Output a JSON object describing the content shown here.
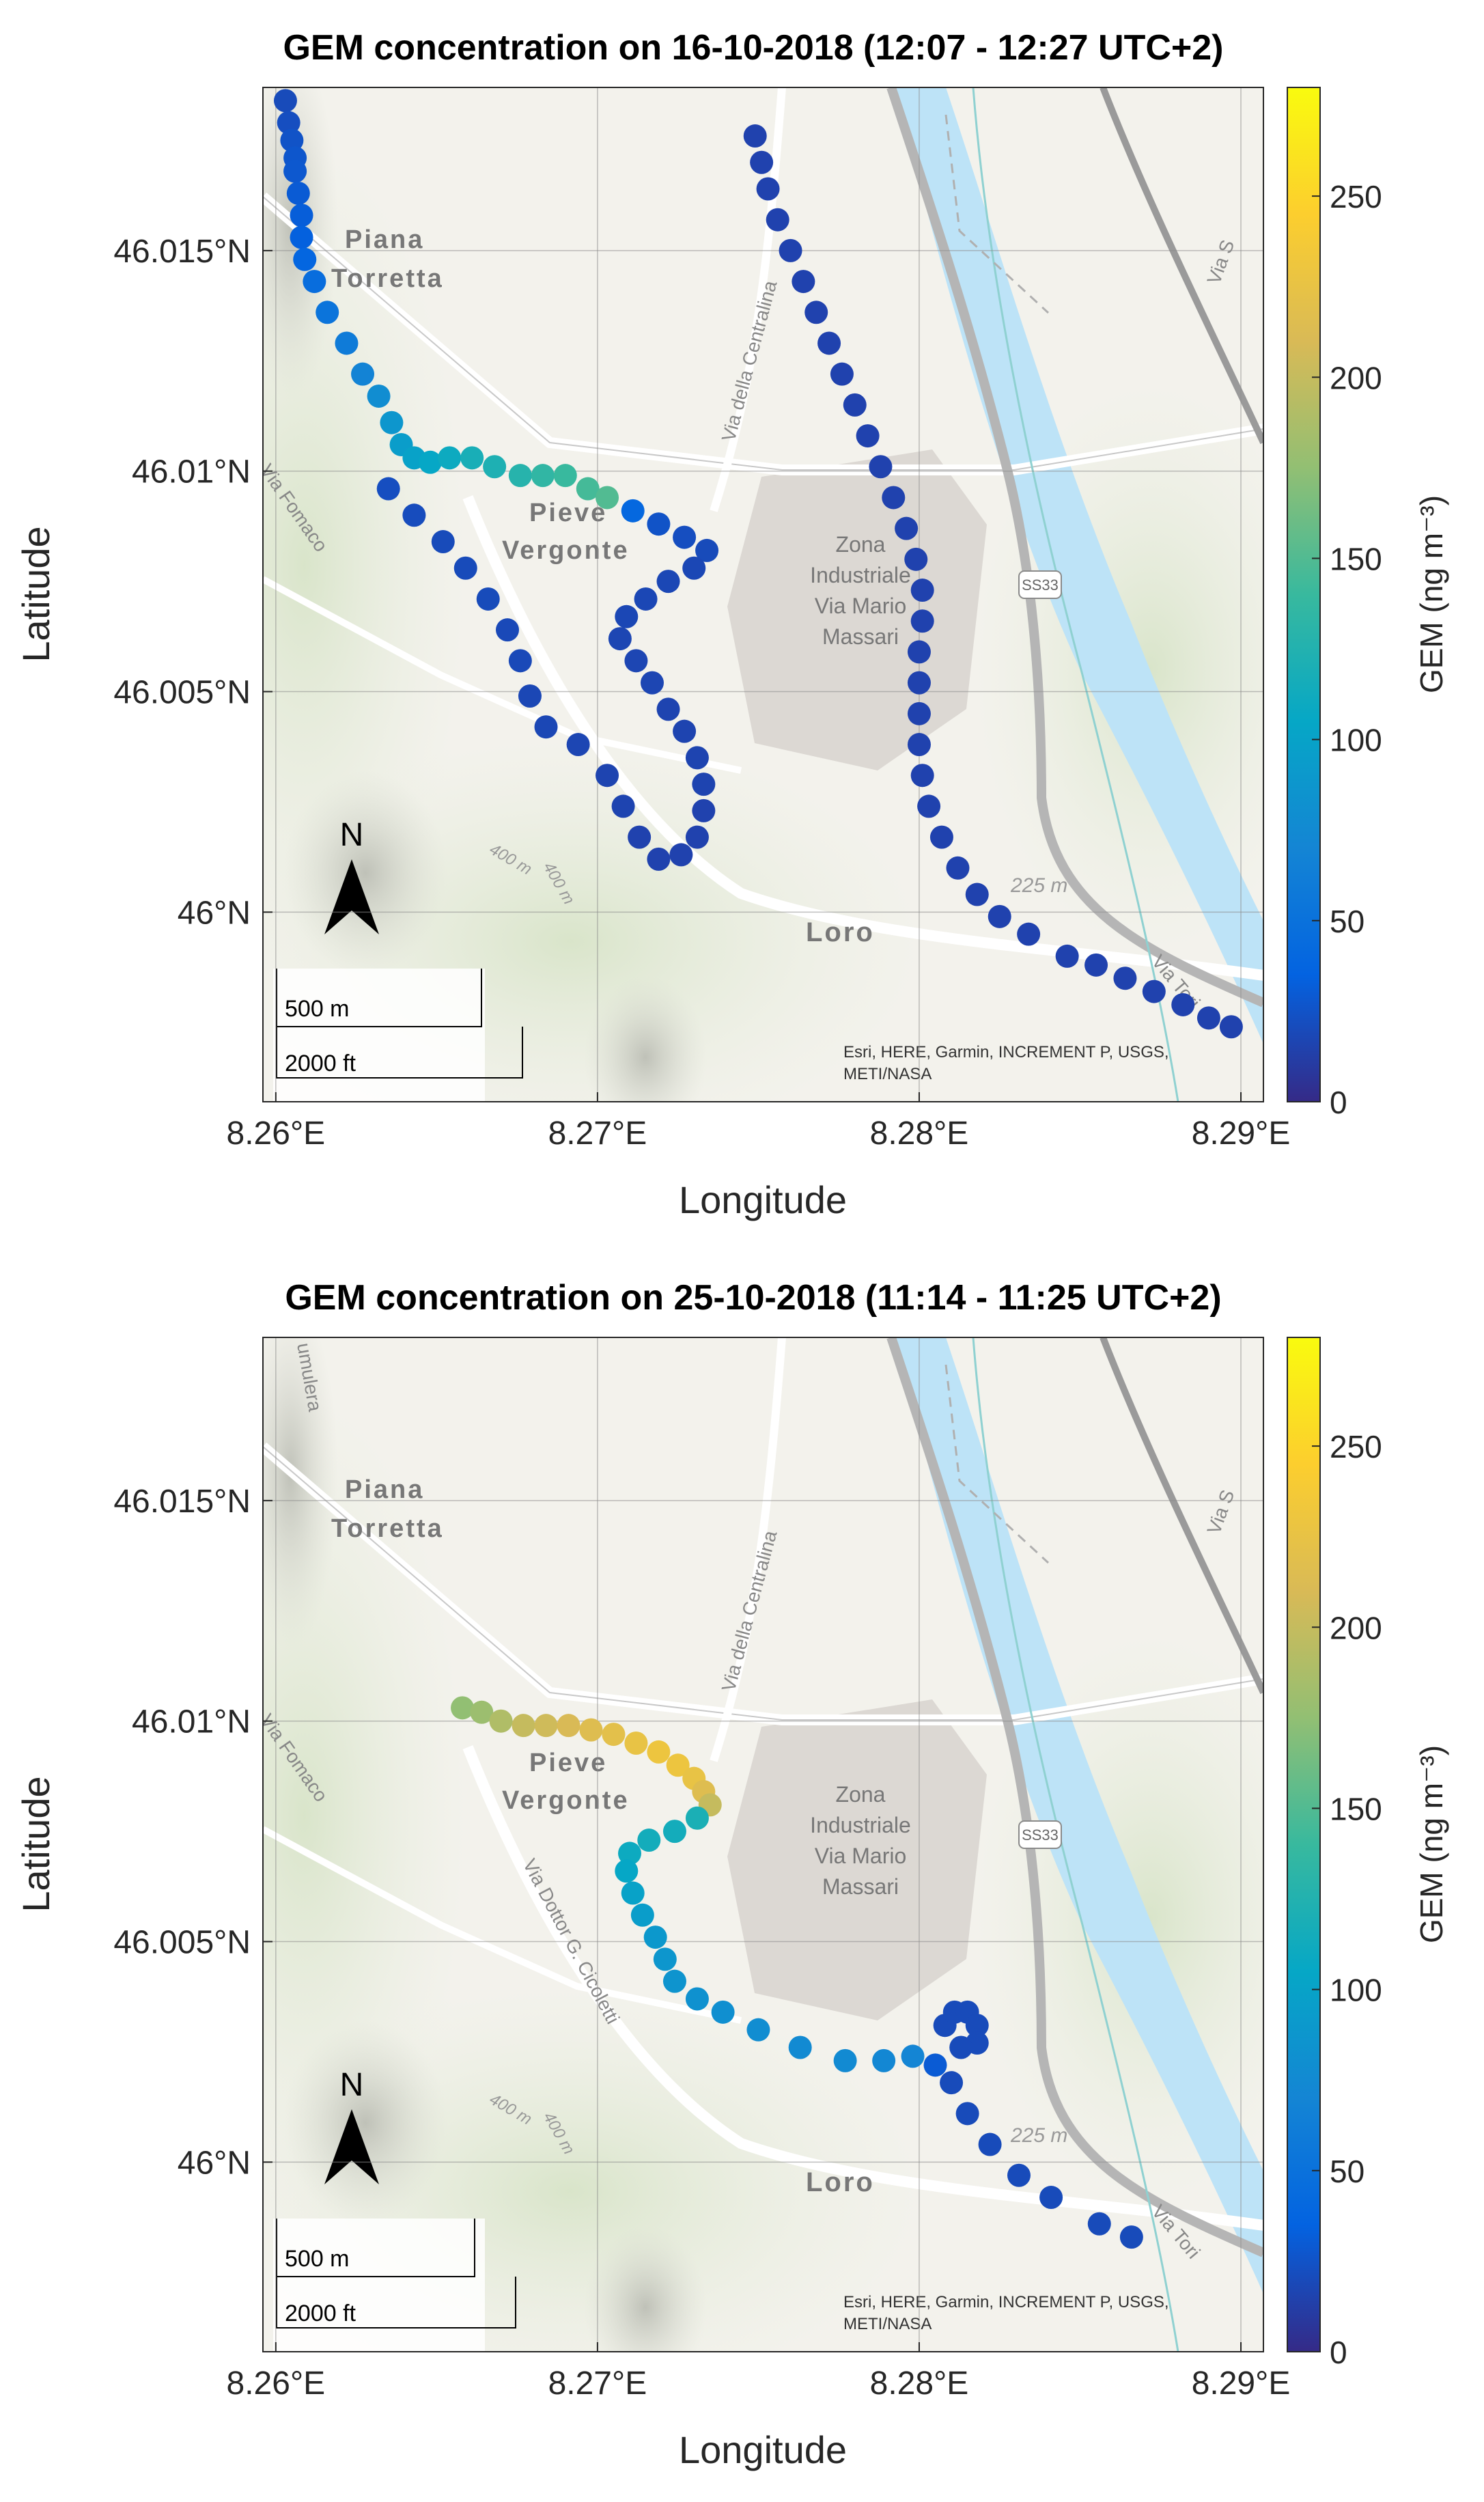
{
  "chart_data": [
    {
      "type": "scatter",
      "title": "GEM concentration on 16-10-2018 (12:07 - 12:27 UTC+2)",
      "xlabel": "Longitude",
      "ylabel": "Latitude",
      "xlim": [
        8.2596,
        8.2907
      ],
      "ylim": [
        45.9957,
        46.0187
      ],
      "x_ticks": [
        "8.26°E",
        "8.27°E",
        "8.28°E",
        "8.29°E"
      ],
      "y_ticks": [
        "46°N",
        "46.005°N",
        "46.01°N",
        "46.015°N"
      ],
      "colorbar": {
        "label": "GEM (ng m⁻³)",
        "range": [
          0,
          280
        ],
        "ticks": [
          "0",
          "50",
          "100",
          "150",
          "200",
          "250"
        ],
        "colormap": "parula"
      },
      "x_tick_values": [
        8.26,
        8.27,
        8.28,
        8.29
      ],
      "y_tick_values": [
        46.0,
        46.005,
        46.01,
        46.015
      ],
      "cbar_tick_values": [
        0,
        50,
        100,
        150,
        200,
        250
      ],
      "grid": true,
      "basemap": {
        "place_labels": [
          "Piana",
          "Torretta",
          "Pieve",
          "Vergonte",
          "Zona",
          "Industriale",
          "Via Mario",
          "Massari",
          "Loro"
        ],
        "road_labels": [
          "Via della Centralina",
          "Via Fomaco",
          "Via Tori",
          "Via S"
        ],
        "shield": "SS33",
        "elevation_labels": [
          "225 m",
          "400 m",
          "400 m"
        ],
        "scale_bar": [
          "500 m",
          "2000 ft"
        ],
        "north_arrow": "N",
        "attribution": [
          "Esri, HERE, Garmin, INCREMENT P, USGS,",
          "METI/NASA"
        ]
      },
      "points": [
        {
          "lon": 8.2603,
          "lat": 46.0184,
          "gem": 20
        },
        {
          "lon": 8.2604,
          "lat": 46.0179,
          "gem": 22
        },
        {
          "lon": 8.2605,
          "lat": 46.0175,
          "gem": 25
        },
        {
          "lon": 8.2606,
          "lat": 46.0171,
          "gem": 27
        },
        {
          "lon": 8.2606,
          "lat": 46.0168,
          "gem": 28
        },
        {
          "lon": 8.2607,
          "lat": 46.0163,
          "gem": 30
        },
        {
          "lon": 8.2608,
          "lat": 46.0158,
          "gem": 32
        },
        {
          "lon": 8.2608,
          "lat": 46.0153,
          "gem": 34
        },
        {
          "lon": 8.2609,
          "lat": 46.0148,
          "gem": 38
        },
        {
          "lon": 8.2612,
          "lat": 46.0143,
          "gem": 45
        },
        {
          "lon": 8.2616,
          "lat": 46.0136,
          "gem": 52
        },
        {
          "lon": 8.2622,
          "lat": 46.0129,
          "gem": 60
        },
        {
          "lon": 8.2627,
          "lat": 46.0122,
          "gem": 68
        },
        {
          "lon": 8.2632,
          "lat": 46.0117,
          "gem": 78
        },
        {
          "lon": 8.2636,
          "lat": 46.0111,
          "gem": 88
        },
        {
          "lon": 8.2639,
          "lat": 46.0106,
          "gem": 95
        },
        {
          "lon": 8.2643,
          "lat": 46.0103,
          "gem": 100
        },
        {
          "lon": 8.2648,
          "lat": 46.0102,
          "gem": 105
        },
        {
          "lon": 8.2654,
          "lat": 46.0103,
          "gem": 110
        },
        {
          "lon": 8.2661,
          "lat": 46.0103,
          "gem": 118
        },
        {
          "lon": 8.2668,
          "lat": 46.0101,
          "gem": 122
        },
        {
          "lon": 8.2676,
          "lat": 46.0099,
          "gem": 128
        },
        {
          "lon": 8.2683,
          "lat": 46.0099,
          "gem": 135
        },
        {
          "lon": 8.269,
          "lat": 46.0099,
          "gem": 140
        },
        {
          "lon": 8.2697,
          "lat": 46.0096,
          "gem": 145
        },
        {
          "lon": 8.2703,
          "lat": 46.0094,
          "gem": 150
        },
        {
          "lon": 8.2711,
          "lat": 46.0091,
          "gem": 40
        },
        {
          "lon": 8.2719,
          "lat": 46.0088,
          "gem": 25
        },
        {
          "lon": 8.2727,
          "lat": 46.0085,
          "gem": 22
        },
        {
          "lon": 8.2734,
          "lat": 46.0082,
          "gem": 20
        },
        {
          "lon": 8.273,
          "lat": 46.0078,
          "gem": 18
        },
        {
          "lon": 8.2722,
          "lat": 46.0075,
          "gem": 18
        },
        {
          "lon": 8.2715,
          "lat": 46.0071,
          "gem": 18
        },
        {
          "lon": 8.2709,
          "lat": 46.0067,
          "gem": 18
        },
        {
          "lon": 8.2707,
          "lat": 46.0062,
          "gem": 17
        },
        {
          "lon": 8.2712,
          "lat": 46.0057,
          "gem": 17
        },
        {
          "lon": 8.2717,
          "lat": 46.0052,
          "gem": 17
        },
        {
          "lon": 8.2722,
          "lat": 46.0046,
          "gem": 16
        },
        {
          "lon": 8.2727,
          "lat": 46.0041,
          "gem": 16
        },
        {
          "lon": 8.2731,
          "lat": 46.0035,
          "gem": 16
        },
        {
          "lon": 8.2733,
          "lat": 46.0029,
          "gem": 16
        },
        {
          "lon": 8.2733,
          "lat": 46.0023,
          "gem": 15
        },
        {
          "lon": 8.2731,
          "lat": 46.0017,
          "gem": 15
        },
        {
          "lon": 8.2726,
          "lat": 46.0013,
          "gem": 15
        },
        {
          "lon": 8.2719,
          "lat": 46.0012,
          "gem": 15
        },
        {
          "lon": 8.2713,
          "lat": 46.0017,
          "gem": 15
        },
        {
          "lon": 8.2708,
          "lat": 46.0024,
          "gem": 16
        },
        {
          "lon": 8.2703,
          "lat": 46.0031,
          "gem": 16
        },
        {
          "lon": 8.2694,
          "lat": 46.0038,
          "gem": 17
        },
        {
          "lon": 8.2684,
          "lat": 46.0042,
          "gem": 18
        },
        {
          "lon": 8.2679,
          "lat": 46.0049,
          "gem": 18
        },
        {
          "lon": 8.2676,
          "lat": 46.0057,
          "gem": 19
        },
        {
          "lon": 8.2672,
          "lat": 46.0064,
          "gem": 19
        },
        {
          "lon": 8.2666,
          "lat": 46.0071,
          "gem": 20
        },
        {
          "lon": 8.2659,
          "lat": 46.0078,
          "gem": 20
        },
        {
          "lon": 8.2652,
          "lat": 46.0084,
          "gem": 20
        },
        {
          "lon": 8.2643,
          "lat": 46.009,
          "gem": 21
        },
        {
          "lon": 8.2635,
          "lat": 46.0096,
          "gem": 22
        },
        {
          "lon": 8.2749,
          "lat": 46.0176,
          "gem": 15
        },
        {
          "lon": 8.2751,
          "lat": 46.017,
          "gem": 15
        },
        {
          "lon": 8.2753,
          "lat": 46.0164,
          "gem": 15
        },
        {
          "lon": 8.2756,
          "lat": 46.0157,
          "gem": 15
        },
        {
          "lon": 8.276,
          "lat": 46.015,
          "gem": 15
        },
        {
          "lon": 8.2764,
          "lat": 46.0143,
          "gem": 15
        },
        {
          "lon": 8.2768,
          "lat": 46.0136,
          "gem": 15
        },
        {
          "lon": 8.2772,
          "lat": 46.0129,
          "gem": 15
        },
        {
          "lon": 8.2776,
          "lat": 46.0122,
          "gem": 15
        },
        {
          "lon": 8.278,
          "lat": 46.0115,
          "gem": 15
        },
        {
          "lon": 8.2784,
          "lat": 46.0108,
          "gem": 15
        },
        {
          "lon": 8.2788,
          "lat": 46.0101,
          "gem": 15
        },
        {
          "lon": 8.2792,
          "lat": 46.0094,
          "gem": 15
        },
        {
          "lon": 8.2796,
          "lat": 46.0087,
          "gem": 15
        },
        {
          "lon": 8.2799,
          "lat": 46.008,
          "gem": 15
        },
        {
          "lon": 8.2801,
          "lat": 46.0073,
          "gem": 15
        },
        {
          "lon": 8.2801,
          "lat": 46.0066,
          "gem": 15
        },
        {
          "lon": 8.28,
          "lat": 46.0059,
          "gem": 15
        },
        {
          "lon": 8.28,
          "lat": 46.0052,
          "gem": 15
        },
        {
          "lon": 8.28,
          "lat": 46.0045,
          "gem": 15
        },
        {
          "lon": 8.28,
          "lat": 46.0038,
          "gem": 15
        },
        {
          "lon": 8.2801,
          "lat": 46.0031,
          "gem": 15
        },
        {
          "lon": 8.2803,
          "lat": 46.0024,
          "gem": 15
        },
        {
          "lon": 8.2807,
          "lat": 46.0017,
          "gem": 15
        },
        {
          "lon": 8.2812,
          "lat": 46.001,
          "gem": 15
        },
        {
          "lon": 8.2818,
          "lat": 46.0004,
          "gem": 15
        },
        {
          "lon": 8.2825,
          "lat": 45.9999,
          "gem": 15
        },
        {
          "lon": 8.2834,
          "lat": 45.9995,
          "gem": 15
        },
        {
          "lon": 8.2846,
          "lat": 45.999,
          "gem": 15
        },
        {
          "lon": 8.2855,
          "lat": 45.9988,
          "gem": 15
        },
        {
          "lon": 8.2864,
          "lat": 45.9985,
          "gem": 15
        },
        {
          "lon": 8.2873,
          "lat": 45.9982,
          "gem": 15
        },
        {
          "lon": 8.2882,
          "lat": 45.9979,
          "gem": 15
        },
        {
          "lon": 8.289,
          "lat": 45.9976,
          "gem": 15
        },
        {
          "lon": 8.2897,
          "lat": 45.9974,
          "gem": 15
        }
      ]
    },
    {
      "type": "scatter",
      "title": "GEM concentration on 25-10-2018 (11:14 - 11:25 UTC+2)",
      "xlabel": "Longitude",
      "ylabel": "Latitude",
      "xlim": [
        8.2596,
        8.2907
      ],
      "ylim": [
        45.9957,
        46.0187
      ],
      "x_ticks": [
        "8.26°E",
        "8.27°E",
        "8.28°E",
        "8.29°E"
      ],
      "y_ticks": [
        "46°N",
        "46.005°N",
        "46.01°N",
        "46.015°N"
      ],
      "colorbar": {
        "label": "GEM (ng m⁻³)",
        "range": [
          0,
          280
        ],
        "ticks": [
          "0",
          "50",
          "100",
          "150",
          "200",
          "250"
        ],
        "colormap": "parula"
      },
      "x_tick_values": [
        8.26,
        8.27,
        8.28,
        8.29
      ],
      "y_tick_values": [
        46.0,
        46.005,
        46.01,
        46.015
      ],
      "cbar_tick_values": [
        0,
        50,
        100,
        150,
        200,
        250
      ],
      "grid": true,
      "basemap": {
        "place_labels": [
          "Piana",
          "Torretta",
          "Pieve",
          "Vergonte",
          "Zona",
          "Industriale",
          "Via Mario",
          "Massari",
          "Loro"
        ],
        "road_labels": [
          "Via della Centralina",
          "Via Fomaco",
          "Via Dottor G. Cicoletti",
          "Via Tori",
          "Via S",
          "umulera"
        ],
        "shield": "SS33",
        "elevation_labels": [
          "225 m",
          "400 m",
          "400 m"
        ],
        "scale_bar": [
          "500 m",
          "2000 ft"
        ],
        "north_arrow": "N",
        "attribution": [
          "Esri, HERE, Garmin, INCREMENT P, USGS,",
          "METI/NASA"
        ]
      },
      "points": [
        {
          "lon": 8.2658,
          "lat": 46.0103,
          "gem": 175
        },
        {
          "lon": 8.2664,
          "lat": 46.0102,
          "gem": 180
        },
        {
          "lon": 8.267,
          "lat": 46.01,
          "gem": 190
        },
        {
          "lon": 8.2677,
          "lat": 46.0099,
          "gem": 200
        },
        {
          "lon": 8.2684,
          "lat": 46.0099,
          "gem": 205
        },
        {
          "lon": 8.2691,
          "lat": 46.0099,
          "gem": 210
        },
        {
          "lon": 8.2698,
          "lat": 46.0098,
          "gem": 215
        },
        {
          "lon": 8.2705,
          "lat": 46.0097,
          "gem": 220
        },
        {
          "lon": 8.2712,
          "lat": 46.0095,
          "gem": 225
        },
        {
          "lon": 8.2719,
          "lat": 46.0093,
          "gem": 230
        },
        {
          "lon": 8.2725,
          "lat": 46.009,
          "gem": 230
        },
        {
          "lon": 8.273,
          "lat": 46.0087,
          "gem": 225
        },
        {
          "lon": 8.2733,
          "lat": 46.0084,
          "gem": 215
        },
        {
          "lon": 8.2735,
          "lat": 46.0081,
          "gem": 200
        },
        {
          "lon": 8.2731,
          "lat": 46.0078,
          "gem": 120
        },
        {
          "lon": 8.2724,
          "lat": 46.0075,
          "gem": 115
        },
        {
          "lon": 8.2716,
          "lat": 46.0073,
          "gem": 115
        },
        {
          "lon": 8.271,
          "lat": 46.007,
          "gem": 110
        },
        {
          "lon": 8.2709,
          "lat": 46.0066,
          "gem": 105
        },
        {
          "lon": 8.2711,
          "lat": 46.0061,
          "gem": 100
        },
        {
          "lon": 8.2714,
          "lat": 46.0056,
          "gem": 95
        },
        {
          "lon": 8.2718,
          "lat": 46.0051,
          "gem": 90
        },
        {
          "lon": 8.2721,
          "lat": 46.0046,
          "gem": 88
        },
        {
          "lon": 8.2724,
          "lat": 46.0041,
          "gem": 85
        },
        {
          "lon": 8.2731,
          "lat": 46.0037,
          "gem": 82
        },
        {
          "lon": 8.2739,
          "lat": 46.0034,
          "gem": 80
        },
        {
          "lon": 8.275,
          "lat": 46.003,
          "gem": 78
        },
        {
          "lon": 8.2763,
          "lat": 46.0026,
          "gem": 75
        },
        {
          "lon": 8.2777,
          "lat": 46.0023,
          "gem": 75
        },
        {
          "lon": 8.2789,
          "lat": 46.0023,
          "gem": 72
        },
        {
          "lon": 8.2798,
          "lat": 46.0024,
          "gem": 70
        },
        {
          "lon": 8.2805,
          "lat": 46.0022,
          "gem": 30
        },
        {
          "lon": 8.2808,
          "lat": 46.0031,
          "gem": 20
        },
        {
          "lon": 8.2811,
          "lat": 46.0034,
          "gem": 20
        },
        {
          "lon": 8.2815,
          "lat": 46.0034,
          "gem": 20
        },
        {
          "lon": 8.2818,
          "lat": 46.0031,
          "gem": 20
        },
        {
          "lon": 8.2818,
          "lat": 46.0027,
          "gem": 20
        },
        {
          "lon": 8.2813,
          "lat": 46.0026,
          "gem": 20
        },
        {
          "lon": 8.281,
          "lat": 46.0018,
          "gem": 20
        },
        {
          "lon": 8.2815,
          "lat": 46.0011,
          "gem": 20
        },
        {
          "lon": 8.2822,
          "lat": 46.0004,
          "gem": 20
        },
        {
          "lon": 8.2831,
          "lat": 45.9997,
          "gem": 20
        },
        {
          "lon": 8.2841,
          "lat": 45.9992,
          "gem": 20
        },
        {
          "lon": 8.2856,
          "lat": 45.9986,
          "gem": 20
        },
        {
          "lon": 8.2866,
          "lat": 45.9983,
          "gem": 20
        }
      ]
    }
  ]
}
